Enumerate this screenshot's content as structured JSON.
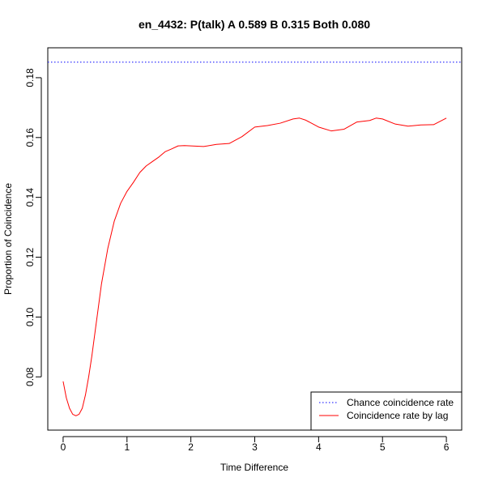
{
  "chart_data": {
    "type": "line",
    "title": "en_4432: P(talk) A 0.589 B 0.315 Both 0.080",
    "xlabel": "Time Difference",
    "ylabel": "Proportion of Coincidence",
    "xlim": [
      -0.24,
      6.24
    ],
    "ylim": [
      0.0622,
      0.19
    ],
    "x_ticks": [
      0,
      1,
      2,
      3,
      4,
      5,
      6
    ],
    "y_ticks": [
      0.08,
      0.1,
      0.12,
      0.14,
      0.16,
      0.18
    ],
    "x_tick_labels": [
      "0",
      "1",
      "2",
      "3",
      "4",
      "5",
      "6"
    ],
    "y_tick_labels": [
      "0.08",
      "0.10",
      "0.12",
      "0.14",
      "0.16",
      "0.18"
    ],
    "grid": false,
    "legend_position": "bottom-right",
    "colors": {
      "chance": "#0000ff",
      "lag": "#ff0000",
      "axis": "#000000"
    },
    "series": [
      {
        "name": "Chance coincidence rate",
        "style": "dotted",
        "x": [
          -0.24,
          6.24
        ],
        "y": [
          0.1852,
          0.1852
        ]
      },
      {
        "name": "Coincidence rate by lag",
        "style": "solid",
        "x": [
          0,
          0.05,
          0.1,
          0.15,
          0.2,
          0.25,
          0.3,
          0.35,
          0.4,
          0.45,
          0.5,
          0.55,
          0.6,
          0.7,
          0.8,
          0.9,
          1.0,
          1.1,
          1.2,
          1.3,
          1.4,
          1.5,
          1.6,
          1.7,
          1.8,
          1.9,
          2.0,
          2.2,
          2.4,
          2.6,
          2.8,
          3.0,
          3.2,
          3.4,
          3.6,
          3.7,
          3.8,
          4.0,
          4.2,
          4.4,
          4.6,
          4.8,
          4.9,
          5.0,
          5.2,
          5.4,
          5.6,
          5.8,
          6.0
        ],
        "y": [
          0.0785,
          0.073,
          0.0695,
          0.0675,
          0.067,
          0.0675,
          0.0695,
          0.074,
          0.08,
          0.087,
          0.095,
          0.103,
          0.111,
          0.123,
          0.132,
          0.138,
          0.142,
          0.145,
          0.1483,
          0.1505,
          0.152,
          0.1535,
          0.1553,
          0.1562,
          0.1572,
          0.1573,
          0.1572,
          0.157,
          0.1577,
          0.158,
          0.1603,
          0.1635,
          0.164,
          0.1648,
          0.1662,
          0.1665,
          0.1658,
          0.1635,
          0.1622,
          0.1628,
          0.1652,
          0.1657,
          0.1665,
          0.1662,
          0.1645,
          0.1638,
          0.1642,
          0.1643,
          0.1665
        ]
      }
    ]
  }
}
